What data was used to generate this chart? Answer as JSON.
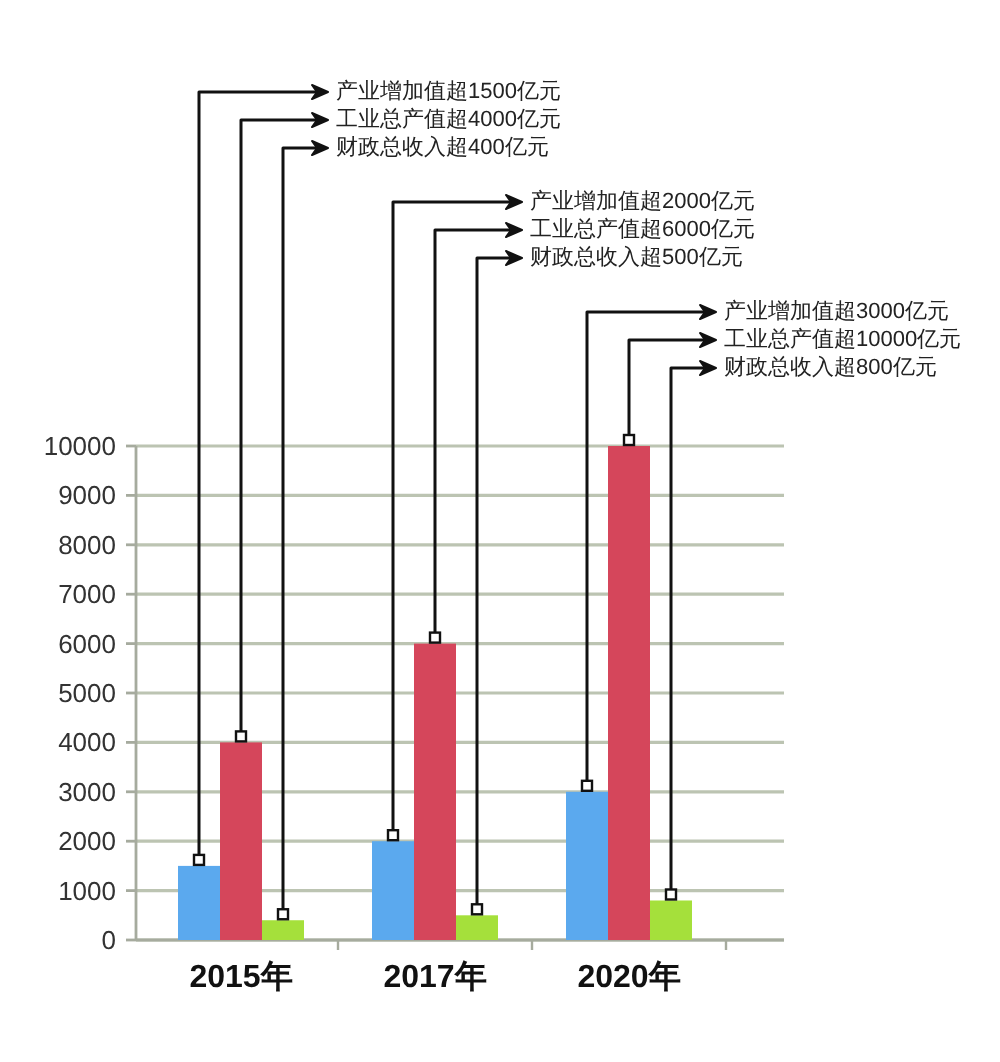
{
  "chart_data": {
    "type": "bar",
    "categories": [
      "2015年",
      "2017年",
      "2020年"
    ],
    "series": [
      {
        "color": "#5ba9ee",
        "values": [
          1500,
          2000,
          3000
        ]
      },
      {
        "color": "#d5465b",
        "values": [
          4000,
          6000,
          10000
        ]
      },
      {
        "color": "#a5e03b",
        "values": [
          400,
          500,
          800
        ]
      }
    ],
    "ylim": [
      0,
      10000
    ],
    "yticks": [
      0,
      1000,
      2000,
      3000,
      4000,
      5000,
      6000,
      7000,
      8000,
      9000,
      10000
    ],
    "grid": "y",
    "annotations": [
      "产业增加值超1500亿元",
      "工业总产值超4000亿元",
      "财政总收入超400亿元",
      "产业增加值超2000亿元",
      "工业总产值超6000亿元",
      "财政总收入超500亿元",
      "产业增加值超3000亿元",
      "工业总产值超10000亿元",
      "财政总收入超800亿元"
    ]
  }
}
